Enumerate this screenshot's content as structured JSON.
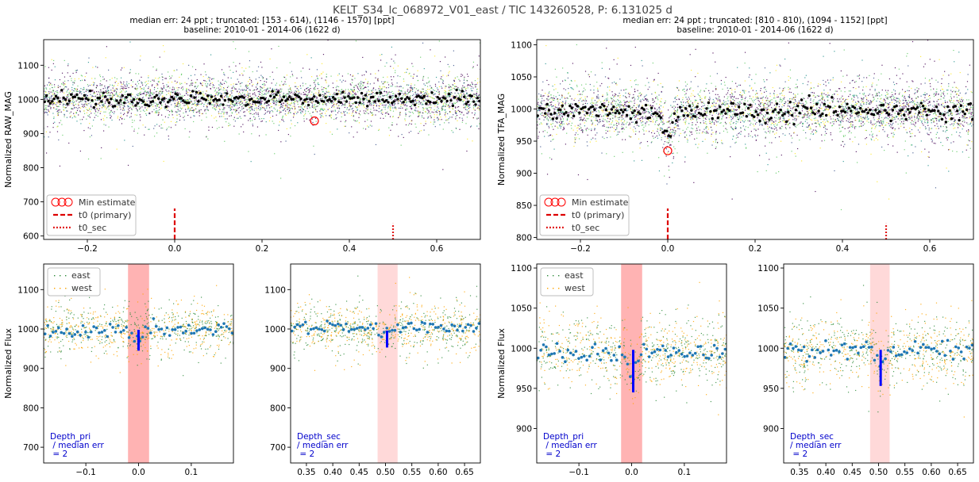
{
  "figure": {
    "title": "KELT_S34_lc_068972_V01_east / TIC 143260528, P: 6.131025 d",
    "left_subtitle": [
      "median err: 24 ppt ; truncated: [153 - 614), (1146 - 1570] [ppt]",
      "baseline: 2010-01 - 2014-06 (1622 d)"
    ],
    "right_subtitle": [
      "median err: 24 ppt ; truncated: [810 - 810), (1094 - 1152] [ppt]",
      "baseline: 2010-01 - 2014-06 (1622 d)"
    ]
  },
  "legends": {
    "top": [
      "Min estimate",
      "t0 (primary)",
      "t0_sec"
    ],
    "bottom": [
      "east",
      "west"
    ]
  },
  "colors": {
    "binned": "#000000",
    "min_marker": "#ff0000",
    "t0_line": "#dd0000",
    "east": "#2e8b3a",
    "west": "#ffa500",
    "binned_zoom": "#1f77b4",
    "depth_bar": "#0000ff",
    "span_primary": "#ff9999",
    "span_secondary": "#ffcccc",
    "depth_text": "#0000cc",
    "phase_colormap": [
      "#440154",
      "#3b528b",
      "#21918c",
      "#5ec962",
      "#fde725"
    ]
  },
  "chart_data": [
    {
      "id": "top-left",
      "type": "scatter",
      "xlabel": "",
      "ylabel": "Normalized RAW_MAG",
      "xlim": [
        -0.3,
        0.7
      ],
      "ylim": [
        590,
        1175
      ],
      "xticks": [
        -0.2,
        0.0,
        0.2,
        0.4,
        0.6
      ],
      "xtick_labels": [
        "−0.2",
        "0.0",
        "0.2",
        "0.4",
        "0.6"
      ],
      "yticks": [
        600,
        700,
        800,
        900,
        1000,
        1100
      ],
      "ytick_labels": [
        "600",
        "700",
        "800",
        "900",
        "1000",
        "1100"
      ],
      "base": 1000,
      "scatter_sd": 35,
      "binned_sd": 10,
      "dips": [],
      "dip_width": 0.018,
      "min_estimate": {
        "x": 0.32,
        "y": 937
      },
      "t0_primary": 0.0,
      "t0_sec": 0.5
    },
    {
      "id": "top-right",
      "type": "scatter",
      "xlabel": "",
      "ylabel": "Normalized TFA_MAG",
      "xlim": [
        -0.3,
        0.7
      ],
      "ylim": [
        797,
        1108
      ],
      "xticks": [
        -0.2,
        0.0,
        0.2,
        0.4,
        0.6
      ],
      "xtick_labels": [
        "−0.2",
        "0.0",
        "0.2",
        "0.4",
        "0.6"
      ],
      "yticks": [
        800,
        850,
        900,
        950,
        1000,
        1050,
        1100
      ],
      "ytick_labels": [
        "800",
        "850",
        "900",
        "950",
        "1000",
        "1050",
        "1100"
      ],
      "base": 997,
      "scatter_sd": 22,
      "binned_sd": 7,
      "dips": [
        {
          "x": 0.0,
          "depth": 40
        }
      ],
      "dip_width": 0.015,
      "min_estimate": {
        "x": 0.0,
        "y": 935
      },
      "t0_primary": 0.0,
      "t0_sec": 0.5
    },
    {
      "id": "zoom-pri-left",
      "type": "scatter",
      "xlabel": "",
      "ylabel": "Normalized Flux",
      "xlim": [
        -0.18,
        0.18
      ],
      "ylim": [
        660,
        1165
      ],
      "xticks": [
        -0.1,
        0.0,
        0.1
      ],
      "xtick_labels": [
        "−0.1",
        "0.0",
        "0.1"
      ],
      "yticks": [
        700,
        800,
        900,
        1000,
        1100
      ],
      "ytick_labels": [
        "700",
        "800",
        "900",
        "1000",
        "1100"
      ],
      "base": 998,
      "scatter_sd": 35,
      "binned_sd": 9,
      "span": [
        -0.02,
        0.02
      ],
      "span_kind": "primary",
      "depth_bar": {
        "x": 0.0,
        "y1": 945,
        "y2": 998
      },
      "dip": {
        "x": 0.0,
        "depth": 25
      },
      "dip_width": 0.012,
      "depth_text": [
        "Depth_pri",
        " / median err",
        " = 2"
      ]
    },
    {
      "id": "zoom-sec-left",
      "type": "scatter",
      "xlabel": "",
      "ylabel": "",
      "xlim": [
        0.32,
        0.68
      ],
      "ylim": [
        660,
        1165
      ],
      "xticks": [
        0.35,
        0.4,
        0.45,
        0.5,
        0.55,
        0.6,
        0.65
      ],
      "xtick_labels": [
        "0.35",
        "0.40",
        "0.45",
        "0.50",
        "0.55",
        "0.60",
        "0.65"
      ],
      "yticks": [
        700,
        800,
        900,
        1000,
        1100
      ],
      "ytick_labels": [
        "700",
        "800",
        "900",
        "1000",
        "1100"
      ],
      "base": 1003,
      "scatter_sd": 35,
      "binned_sd": 9,
      "span": [
        0.485,
        0.523
      ],
      "span_kind": "secondary",
      "depth_bar": {
        "x": 0.503,
        "y1": 953,
        "y2": 996
      },
      "dip": {
        "x": 0.503,
        "depth": 20
      },
      "dip_width": 0.012,
      "depth_text": [
        "Depth_sec",
        "/ median err",
        " = 2"
      ]
    },
    {
      "id": "zoom-pri-right",
      "type": "scatter",
      "xlabel": "",
      "ylabel": "Normalized Flux",
      "xlim": [
        -0.18,
        0.18
      ],
      "ylim": [
        857,
        1105
      ],
      "xticks": [
        -0.1,
        0.0,
        0.1
      ],
      "xtick_labels": [
        "−0.1",
        "0.0",
        "0.1"
      ],
      "yticks": [
        900,
        950,
        1000,
        1050,
        1100
      ],
      "ytick_labels": [
        "900",
        "950",
        "1000",
        "1050",
        "1100"
      ],
      "base": 995,
      "scatter_sd": 22,
      "binned_sd": 6,
      "span": [
        -0.02,
        0.02
      ],
      "span_kind": "primary",
      "depth_bar": {
        "x": 0.003,
        "y1": 945,
        "y2": 998
      },
      "dip": {
        "x": 0.003,
        "depth": 30
      },
      "dip_width": 0.01,
      "depth_text": [
        "Depth_pri",
        " / median err",
        " = 2"
      ]
    },
    {
      "id": "zoom-sec-right",
      "type": "scatter",
      "xlabel": "",
      "ylabel": "",
      "xlim": [
        0.32,
        0.68
      ],
      "ylim": [
        857,
        1105
      ],
      "xticks": [
        0.35,
        0.4,
        0.45,
        0.5,
        0.55,
        0.6,
        0.65
      ],
      "xtick_labels": [
        "0.35",
        "0.40",
        "0.45",
        "0.50",
        "0.55",
        "0.60",
        "0.65"
      ],
      "yticks": [
        900,
        950,
        1000,
        1050,
        1100
      ],
      "ytick_labels": [
        "900",
        "950",
        "1000",
        "1050",
        "1100"
      ],
      "base": 997,
      "scatter_sd": 22,
      "binned_sd": 6,
      "span": [
        0.484,
        0.521
      ],
      "span_kind": "secondary",
      "depth_bar": {
        "x": 0.504,
        "y1": 953,
        "y2": 998
      },
      "dip": {
        "x": 0.504,
        "depth": 20
      },
      "dip_width": 0.01,
      "depth_text": [
        "Depth_sec",
        "/ median err",
        " = 2"
      ]
    }
  ]
}
